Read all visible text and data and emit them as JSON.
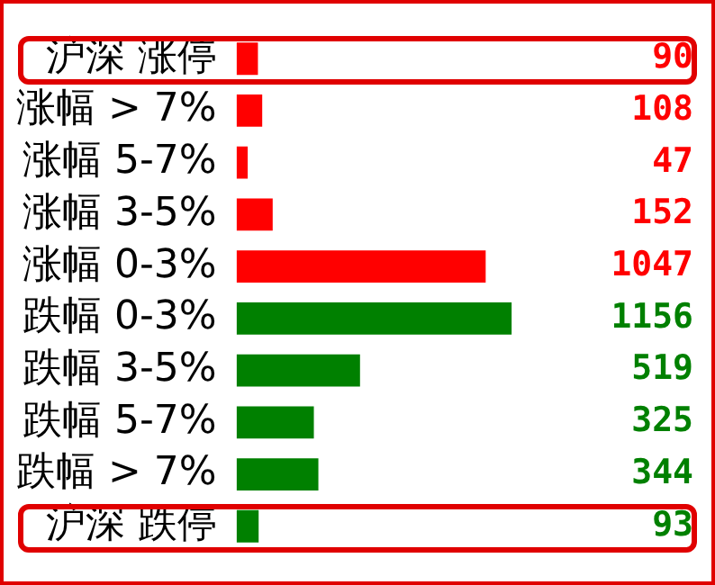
{
  "chart_data": {
    "type": "bar",
    "orientation": "horizontal",
    "categories": [
      "沪深 涨停",
      "涨幅 > 7%",
      "涨幅 5-7%",
      "涨幅 3-5%",
      "涨幅 0-3%",
      "跌幅 0-3%",
      "跌幅 3-5%",
      "跌幅 5-7%",
      "跌幅 > 7%",
      "沪深 跌停"
    ],
    "values": [
      90,
      108,
      47,
      152,
      1047,
      1156,
      519,
      325,
      344,
      93
    ],
    "colors": [
      "#ff0000",
      "#ff0000",
      "#ff0000",
      "#ff0000",
      "#ff0000",
      "#008000",
      "#008000",
      "#008000",
      "#008000",
      "#008000"
    ],
    "data_labels": true,
    "grid": false,
    "legend": false,
    "tick_labels": "y"
  }
}
